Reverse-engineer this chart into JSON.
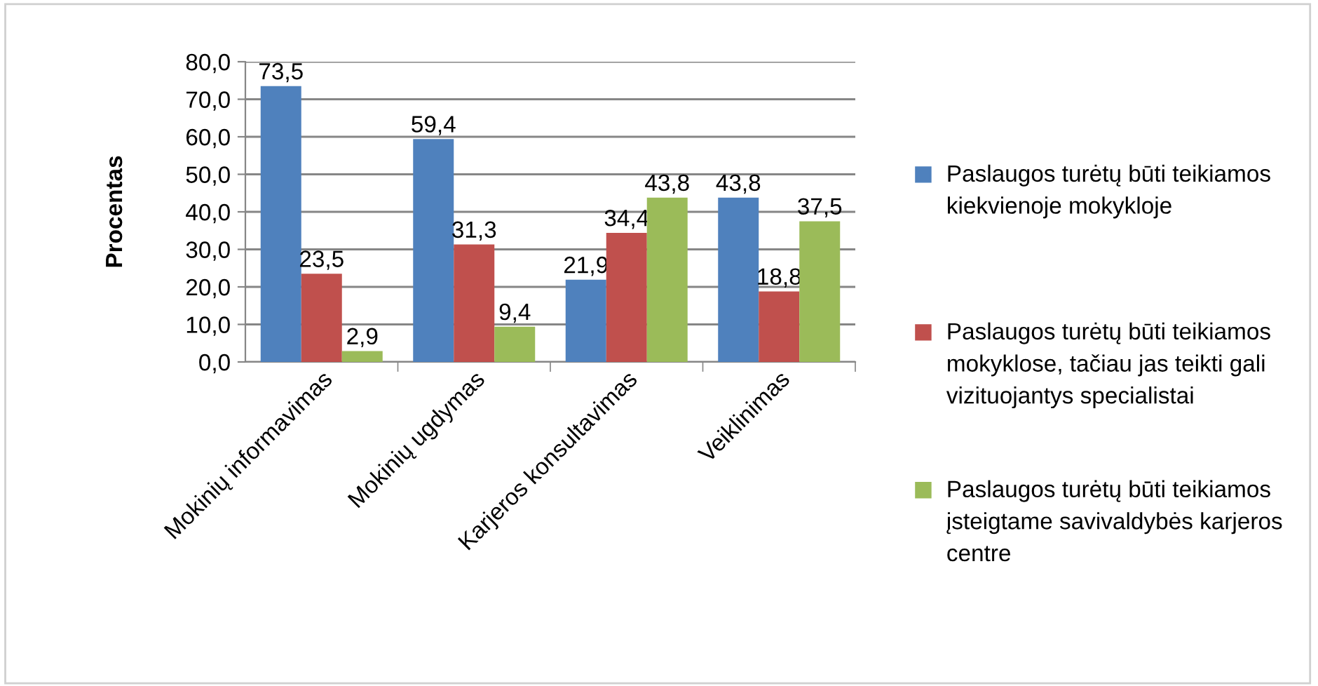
{
  "chart_data": {
    "type": "bar",
    "ylabel": "Procentas",
    "categories": [
      "Mokinių informavimas",
      "Mokinių ugdymas",
      "Karjeros konsultavimas",
      "Veiklinimas"
    ],
    "series": [
      {
        "name": "Paslaugos turėtų būti teikiamos kiekvienoje mokykloje",
        "color": "#4f81bd",
        "values": [
          73.5,
          59.4,
          21.9,
          43.8
        ],
        "value_labels": [
          "73,5",
          "59,4",
          "21,9",
          "43,8"
        ]
      },
      {
        "name": "Paslaugos turėtų būti teikiamos mokyklose, tačiau jas teikti gali vizituojantys specialistai",
        "color": "#c0504d",
        "values": [
          23.5,
          31.3,
          34.4,
          18.8
        ],
        "value_labels": [
          "23,5",
          "31,3",
          "34,4",
          "18,8"
        ]
      },
      {
        "name": "Paslaugos turėtų būti teikiamos įsteigtame savivaldybės karjeros centre",
        "color": "#9bbb59",
        "values": [
          2.9,
          9.4,
          43.8,
          37.5
        ],
        "value_labels": [
          "2,9",
          "9,4",
          "43,8",
          "37,5"
        ]
      }
    ],
    "ylim": [
      0,
      80
    ],
    "yticks": [
      {
        "value": 0,
        "label": "0,0"
      },
      {
        "value": 10,
        "label": "10,0"
      },
      {
        "value": 20,
        "label": "20,0"
      },
      {
        "value": 30,
        "label": "30,0"
      },
      {
        "value": 40,
        "label": "40,0"
      },
      {
        "value": 50,
        "label": "50,0"
      },
      {
        "value": 60,
        "label": "60,0"
      },
      {
        "value": 70,
        "label": "70,0"
      },
      {
        "value": 80,
        "label": "80,0"
      }
    ],
    "grid": "y",
    "legend": "right"
  }
}
